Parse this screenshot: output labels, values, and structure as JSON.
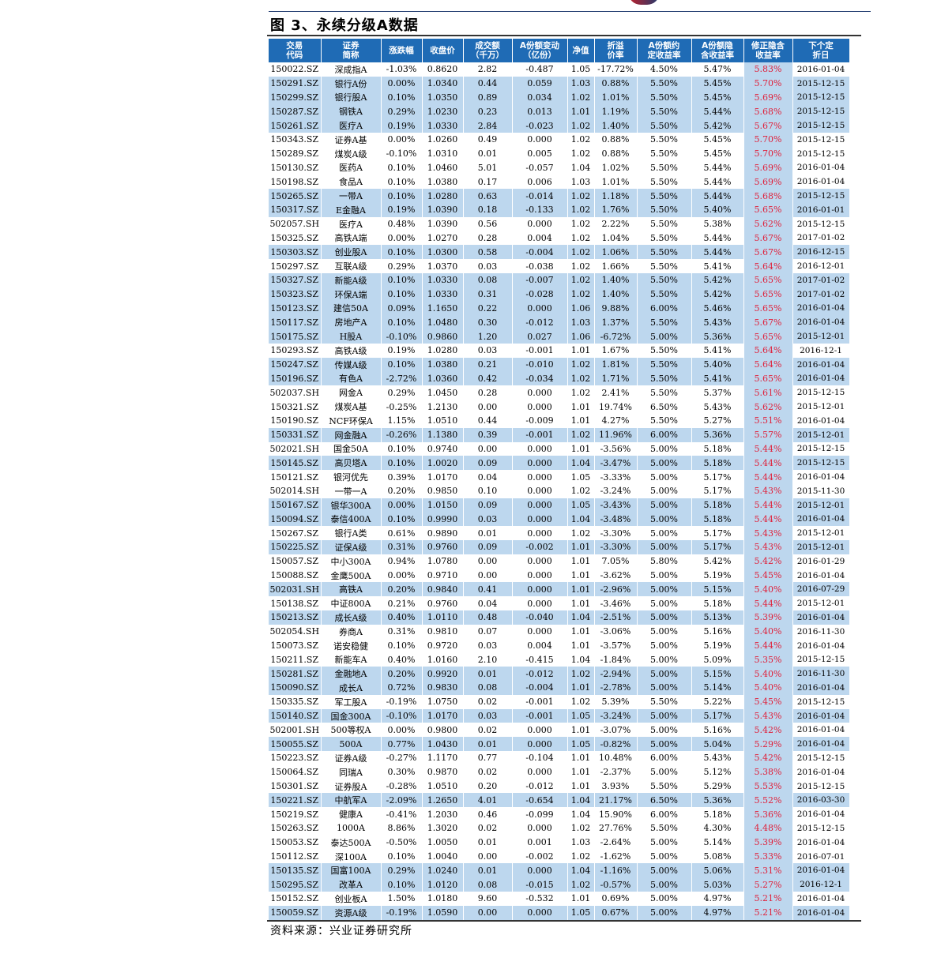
{
  "figure": {
    "title": "图 3、永续分级A数据"
  },
  "source": "资料来源：兴业证券研究所",
  "colors": {
    "header_bg": "#1f6bb5",
    "highlight_row": "#bdd7ee",
    "modified_yield_text": "#e0203a"
  },
  "columns": [
    "交易\n代码",
    "证券\n简称",
    "涨跌幅",
    "收盘价",
    "成交额\n（千万）",
    "A份额变动\n（亿份）",
    "净值",
    "折溢\n价率",
    "A份额约\n定收益率",
    "A份额隐\n含收益率",
    "修正隐含\n收益率",
    "下个定\n折日"
  ],
  "rows": [
    {
      "c": [
        "150022.SZ",
        "深成指A",
        "-1.03%",
        "0.8620",
        "2.82",
        "-0.487",
        "1.05",
        "-17.72%",
        "4.50%",
        "5.47%",
        "5.83%",
        "2016-01-04"
      ],
      "hl": false
    },
    {
      "c": [
        "150291.SZ",
        "银行A份",
        "0.00%",
        "1.0340",
        "0.44",
        "0.059",
        "1.03",
        "0.88%",
        "5.50%",
        "5.45%",
        "5.70%",
        "2015-12-15"
      ],
      "hl": true
    },
    {
      "c": [
        "150299.SZ",
        "银行股A",
        "0.10%",
        "1.0350",
        "0.89",
        "0.034",
        "1.02",
        "1.01%",
        "5.50%",
        "5.45%",
        "5.69%",
        "2015-12-15"
      ],
      "hl": true
    },
    {
      "c": [
        "150287.SZ",
        "钢铁A",
        "0.29%",
        "1.0230",
        "0.23",
        "0.013",
        "1.01",
        "1.19%",
        "5.50%",
        "5.44%",
        "5.68%",
        "2015-12-15"
      ],
      "hl": true
    },
    {
      "c": [
        "150261.SZ",
        "医疗A",
        "0.19%",
        "1.0330",
        "2.84",
        "-0.023",
        "1.02",
        "1.40%",
        "5.50%",
        "5.42%",
        "5.67%",
        "2015-12-15"
      ],
      "hl": true
    },
    {
      "c": [
        "150343.SZ",
        "证券A基",
        "0.00%",
        "1.0260",
        "0.49",
        "0.000",
        "1.02",
        "0.88%",
        "5.50%",
        "5.45%",
        "5.70%",
        "2015-12-15"
      ],
      "hl": false
    },
    {
      "c": [
        "150289.SZ",
        "煤炭A级",
        "-0.10%",
        "1.0310",
        "0.01",
        "0.005",
        "1.02",
        "0.88%",
        "5.50%",
        "5.45%",
        "5.70%",
        "2015-12-15"
      ],
      "hl": false
    },
    {
      "c": [
        "150130.SZ",
        "医药A",
        "0.10%",
        "1.0460",
        "5.01",
        "-0.057",
        "1.04",
        "1.02%",
        "5.50%",
        "5.44%",
        "5.69%",
        "2016-01-04"
      ],
      "hl": false
    },
    {
      "c": [
        "150198.SZ",
        "食品A",
        "0.10%",
        "1.0380",
        "0.17",
        "0.006",
        "1.03",
        "1.01%",
        "5.50%",
        "5.44%",
        "5.69%",
        "2016-01-04"
      ],
      "hl": false
    },
    {
      "c": [
        "150265.SZ",
        "一带A",
        "0.10%",
        "1.0280",
        "0.63",
        "-0.014",
        "1.02",
        "1.18%",
        "5.50%",
        "5.44%",
        "5.68%",
        "2015-12-15"
      ],
      "hl": true
    },
    {
      "c": [
        "150317.SZ",
        "E金融A",
        "0.19%",
        "1.0390",
        "0.18",
        "-0.133",
        "1.02",
        "1.76%",
        "5.50%",
        "5.40%",
        "5.65%",
        "2016-01-01"
      ],
      "hl": true
    },
    {
      "c": [
        "502057.SH",
        "医疗A",
        "0.48%",
        "1.0390",
        "0.56",
        "0.000",
        "1.02",
        "2.22%",
        "5.50%",
        "5.38%",
        "5.62%",
        "2015-12-15"
      ],
      "hl": false
    },
    {
      "c": [
        "150325.SZ",
        "高铁A端",
        "0.00%",
        "1.0270",
        "0.28",
        "0.004",
        "1.02",
        "1.04%",
        "5.50%",
        "5.44%",
        "5.67%",
        "2017-01-02"
      ],
      "hl": false
    },
    {
      "c": [
        "150303.SZ",
        "创业股A",
        "0.10%",
        "1.0300",
        "0.58",
        "-0.004",
        "1.02",
        "1.06%",
        "5.50%",
        "5.44%",
        "5.67%",
        "2016-12-15"
      ],
      "hl": true
    },
    {
      "c": [
        "150297.SZ",
        "互联A级",
        "0.29%",
        "1.0370",
        "0.03",
        "-0.038",
        "1.02",
        "1.66%",
        "5.50%",
        "5.41%",
        "5.64%",
        "2016-12-01"
      ],
      "hl": false
    },
    {
      "c": [
        "150327.SZ",
        "新能A级",
        "0.10%",
        "1.0330",
        "0.08",
        "-0.007",
        "1.02",
        "1.40%",
        "5.50%",
        "5.42%",
        "5.65%",
        "2017-01-02"
      ],
      "hl": true
    },
    {
      "c": [
        "150323.SZ",
        "环保A端",
        "0.10%",
        "1.0330",
        "0.31",
        "-0.028",
        "1.02",
        "1.40%",
        "5.50%",
        "5.42%",
        "5.65%",
        "2017-01-02"
      ],
      "hl": true
    },
    {
      "c": [
        "150123.SZ",
        "建信50A",
        "0.09%",
        "1.1650",
        "0.22",
        "0.000",
        "1.06",
        "9.88%",
        "6.00%",
        "5.46%",
        "5.65%",
        "2016-01-04"
      ],
      "hl": true
    },
    {
      "c": [
        "150117.SZ",
        "房地产A",
        "0.10%",
        "1.0480",
        "0.30",
        "-0.012",
        "1.03",
        "1.37%",
        "5.50%",
        "5.43%",
        "5.67%",
        "2016-01-04"
      ],
      "hl": true
    },
    {
      "c": [
        "150175.SZ",
        "H股A",
        "-0.10%",
        "0.9860",
        "1.20",
        "0.027",
        "1.06",
        "-6.72%",
        "5.00%",
        "5.36%",
        "5.65%",
        "2015-12-01"
      ],
      "hl": true
    },
    {
      "c": [
        "150293.SZ",
        "高铁A级",
        "0.19%",
        "1.0280",
        "0.03",
        "-0.001",
        "1.01",
        "1.67%",
        "5.50%",
        "5.41%",
        "5.64%",
        "2016-12-1"
      ],
      "hl": false
    },
    {
      "c": [
        "150247.SZ",
        "传媒A级",
        "0.10%",
        "1.0380",
        "0.21",
        "-0.010",
        "1.02",
        "1.81%",
        "5.50%",
        "5.40%",
        "5.64%",
        "2016-01-04"
      ],
      "hl": true
    },
    {
      "c": [
        "150196.SZ",
        "有色A",
        "-2.72%",
        "1.0360",
        "0.42",
        "-0.034",
        "1.02",
        "1.71%",
        "5.50%",
        "5.41%",
        "5.65%",
        "2016-01-04"
      ],
      "hl": true
    },
    {
      "c": [
        "502037.SH",
        "网金A",
        "0.29%",
        "1.0450",
        "0.28",
        "0.000",
        "1.02",
        "2.41%",
        "5.50%",
        "5.37%",
        "5.61%",
        "2015-12-15"
      ],
      "hl": false
    },
    {
      "c": [
        "150321.SZ",
        "煤炭A基",
        "-0.25%",
        "1.2130",
        "0.00",
        "0.000",
        "1.01",
        "19.74%",
        "6.50%",
        "5.43%",
        "5.62%",
        "2015-12-01"
      ],
      "hl": false
    },
    {
      "c": [
        "150190.SZ",
        "NCF环保A",
        "1.15%",
        "1.0510",
        "0.44",
        "-0.009",
        "1.01",
        "4.27%",
        "5.50%",
        "5.27%",
        "5.51%",
        "2016-01-04"
      ],
      "hl": false
    },
    {
      "c": [
        "150331.SZ",
        "网金融A",
        "-0.26%",
        "1.1380",
        "0.39",
        "-0.001",
        "1.02",
        "11.96%",
        "6.00%",
        "5.36%",
        "5.57%",
        "2015-12-01"
      ],
      "hl": true
    },
    {
      "c": [
        "502021.SH",
        "国金50A",
        "0.10%",
        "0.9740",
        "0.00",
        "0.000",
        "1.01",
        "-3.56%",
        "5.00%",
        "5.18%",
        "5.44%",
        "2015-12-15"
      ],
      "hl": false
    },
    {
      "c": [
        "150145.SZ",
        "高贝塔A",
        "0.10%",
        "1.0020",
        "0.09",
        "0.000",
        "1.04",
        "-3.47%",
        "5.00%",
        "5.18%",
        "5.44%",
        "2015-12-15"
      ],
      "hl": true
    },
    {
      "c": [
        "150121.SZ",
        "银河优先",
        "0.39%",
        "1.0170",
        "0.04",
        "0.000",
        "1.05",
        "-3.33%",
        "5.00%",
        "5.17%",
        "5.44%",
        "2016-01-04"
      ],
      "hl": false
    },
    {
      "c": [
        "502014.SH",
        "一带一A",
        "0.20%",
        "0.9850",
        "0.10",
        "0.000",
        "1.02",
        "-3.24%",
        "5.00%",
        "5.17%",
        "5.43%",
        "2015-11-30"
      ],
      "hl": false
    },
    {
      "c": [
        "150167.SZ",
        "银华300A",
        "0.00%",
        "1.0150",
        "0.09",
        "0.000",
        "1.05",
        "-3.43%",
        "5.00%",
        "5.18%",
        "5.44%",
        "2015-12-01"
      ],
      "hl": true
    },
    {
      "c": [
        "150094.SZ",
        "泰信400A",
        "0.10%",
        "0.9990",
        "0.03",
        "0.000",
        "1.04",
        "-3.48%",
        "5.00%",
        "5.18%",
        "5.44%",
        "2016-01-04"
      ],
      "hl": true
    },
    {
      "c": [
        "150267.SZ",
        "银行A类",
        "0.61%",
        "0.9890",
        "0.01",
        "0.000",
        "1.02",
        "-3.30%",
        "5.00%",
        "5.17%",
        "5.43%",
        "2015-12-01"
      ],
      "hl": false
    },
    {
      "c": [
        "150225.SZ",
        "证保A级",
        "0.31%",
        "0.9760",
        "0.09",
        "-0.002",
        "1.01",
        "-3.30%",
        "5.00%",
        "5.17%",
        "5.43%",
        "2015-12-01"
      ],
      "hl": true
    },
    {
      "c": [
        "150057.SZ",
        "中小300A",
        "0.94%",
        "1.0780",
        "0.00",
        "0.000",
        "1.01",
        "7.05%",
        "5.80%",
        "5.42%",
        "5.42%",
        "2016-01-29"
      ],
      "hl": false
    },
    {
      "c": [
        "150088.SZ",
        "金鹰500A",
        "0.00%",
        "0.9710",
        "0.00",
        "0.000",
        "1.01",
        "-3.62%",
        "5.00%",
        "5.19%",
        "5.45%",
        "2016-01-04"
      ],
      "hl": false
    },
    {
      "c": [
        "502031.SH",
        "高铁A",
        "0.20%",
        "0.9840",
        "0.41",
        "0.000",
        "1.01",
        "-2.96%",
        "5.00%",
        "5.15%",
        "5.40%",
        "2016-07-29"
      ],
      "hl": true
    },
    {
      "c": [
        "150138.SZ",
        "中证800A",
        "0.21%",
        "0.9760",
        "0.04",
        "0.000",
        "1.01",
        "-3.46%",
        "5.00%",
        "5.18%",
        "5.44%",
        "2015-12-01"
      ],
      "hl": false
    },
    {
      "c": [
        "150213.SZ",
        "成长A级",
        "0.40%",
        "1.0110",
        "0.48",
        "-0.040",
        "1.04",
        "-2.51%",
        "5.00%",
        "5.13%",
        "5.39%",
        "2016-01-04"
      ],
      "hl": true
    },
    {
      "c": [
        "502054.SH",
        "券商A",
        "0.31%",
        "0.9810",
        "0.07",
        "0.000",
        "1.01",
        "-3.06%",
        "5.00%",
        "5.16%",
        "5.40%",
        "2016-11-30"
      ],
      "hl": false
    },
    {
      "c": [
        "150073.SZ",
        "诺安稳健",
        "0.10%",
        "0.9720",
        "0.03",
        "0.004",
        "1.01",
        "-3.57%",
        "5.00%",
        "5.19%",
        "5.44%",
        "2016-01-04"
      ],
      "hl": false
    },
    {
      "c": [
        "150211.SZ",
        "新能车A",
        "0.40%",
        "1.0160",
        "2.10",
        "-0.415",
        "1.04",
        "-1.84%",
        "5.00%",
        "5.09%",
        "5.35%",
        "2015-12-15"
      ],
      "hl": false
    },
    {
      "c": [
        "150281.SZ",
        "金融地A",
        "0.20%",
        "0.9920",
        "0.01",
        "-0.012",
        "1.02",
        "-2.94%",
        "5.00%",
        "5.15%",
        "5.40%",
        "2016-11-30"
      ],
      "hl": true
    },
    {
      "c": [
        "150090.SZ",
        "成长A",
        "0.72%",
        "0.9830",
        "0.08",
        "-0.004",
        "1.01",
        "-2.78%",
        "5.00%",
        "5.14%",
        "5.40%",
        "2016-01-04"
      ],
      "hl": true
    },
    {
      "c": [
        "150335.SZ",
        "军工股A",
        "-0.19%",
        "1.0750",
        "0.02",
        "-0.001",
        "1.02",
        "5.39%",
        "5.50%",
        "5.22%",
        "5.45%",
        "2015-12-15"
      ],
      "hl": false
    },
    {
      "c": [
        "150140.SZ",
        "国金300A",
        "-0.10%",
        "1.0170",
        "0.03",
        "-0.001",
        "1.05",
        "-3.24%",
        "5.00%",
        "5.17%",
        "5.43%",
        "2016-01-04"
      ],
      "hl": true
    },
    {
      "c": [
        "502001.SH",
        "500等权A",
        "0.00%",
        "0.9800",
        "0.02",
        "0.000",
        "1.01",
        "-3.07%",
        "5.00%",
        "5.16%",
        "5.42%",
        "2016-01-04"
      ],
      "hl": false
    },
    {
      "c": [
        "150055.SZ",
        "500A",
        "0.77%",
        "1.0430",
        "0.01",
        "0.000",
        "1.05",
        "-0.82%",
        "5.00%",
        "5.04%",
        "5.29%",
        "2016-01-04"
      ],
      "hl": true
    },
    {
      "c": [
        "150223.SZ",
        "证券A级",
        "-0.27%",
        "1.1170",
        "0.77",
        "-0.104",
        "1.01",
        "10.48%",
        "6.00%",
        "5.43%",
        "5.42%",
        "2015-12-15"
      ],
      "hl": false
    },
    {
      "c": [
        "150064.SZ",
        "同瑞A",
        "0.30%",
        "0.9870",
        "0.02",
        "0.000",
        "1.01",
        "-2.37%",
        "5.00%",
        "5.12%",
        "5.38%",
        "2016-01-04"
      ],
      "hl": false
    },
    {
      "c": [
        "150301.SZ",
        "证券股A",
        "-0.28%",
        "1.0510",
        "0.20",
        "-0.012",
        "1.01",
        "3.93%",
        "5.50%",
        "5.29%",
        "5.53%",
        "2015-12-15"
      ],
      "hl": false
    },
    {
      "c": [
        "150221.SZ",
        "中航军A",
        "-2.09%",
        "1.2650",
        "4.01",
        "-0.654",
        "1.04",
        "21.17%",
        "6.50%",
        "5.36%",
        "5.52%",
        "2016-03-30"
      ],
      "hl": true
    },
    {
      "c": [
        "150219.SZ",
        "健康A",
        "-0.41%",
        "1.2030",
        "0.46",
        "-0.099",
        "1.04",
        "15.90%",
        "6.00%",
        "5.18%",
        "5.36%",
        "2016-01-04"
      ],
      "hl": false
    },
    {
      "c": [
        "150263.SZ",
        "1000A",
        "8.86%",
        "1.3020",
        "0.02",
        "0.000",
        "1.02",
        "27.76%",
        "5.50%",
        "4.30%",
        "4.48%",
        "2015-12-15"
      ],
      "hl": false
    },
    {
      "c": [
        "150053.SZ",
        "泰达500A",
        "-0.50%",
        "1.0050",
        "0.01",
        "0.001",
        "1.03",
        "-2.64%",
        "5.00%",
        "5.14%",
        "5.39%",
        "2016-01-04"
      ],
      "hl": false
    },
    {
      "c": [
        "150112.SZ",
        "深100A",
        "0.10%",
        "1.0040",
        "0.00",
        "-0.002",
        "1.02",
        "-1.62%",
        "5.00%",
        "5.08%",
        "5.33%",
        "2016-07-01"
      ],
      "hl": false
    },
    {
      "c": [
        "150135.SZ",
        "国富100A",
        "0.29%",
        "1.0240",
        "0.01",
        "0.000",
        "1.04",
        "-1.16%",
        "5.00%",
        "5.06%",
        "5.31%",
        "2016-01-04"
      ],
      "hl": true
    },
    {
      "c": [
        "150295.SZ",
        "改革A",
        "0.10%",
        "1.0120",
        "0.08",
        "-0.015",
        "1.02",
        "-0.57%",
        "5.00%",
        "5.03%",
        "5.27%",
        "2016-12-1"
      ],
      "hl": true
    },
    {
      "c": [
        "150152.SZ",
        "创业板A",
        "1.50%",
        "1.0180",
        "9.60",
        "-0.532",
        "1.01",
        "0.69%",
        "5.00%",
        "4.97%",
        "5.21%",
        "2016-01-04"
      ],
      "hl": false
    },
    {
      "c": [
        "150059.SZ",
        "资源A级",
        "-0.19%",
        "1.0590",
        "0.00",
        "0.000",
        "1.05",
        "0.67%",
        "5.00%",
        "4.97%",
        "5.21%",
        "2016-01-04"
      ],
      "hl": true
    }
  ]
}
